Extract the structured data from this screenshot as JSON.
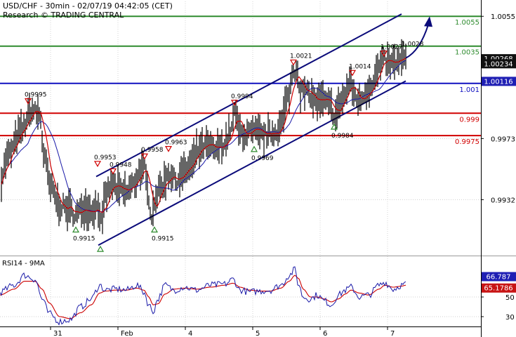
{
  "header": {
    "title": "USD/CHF - 30min - 02/07/19 04:42:05 (CET)",
    "research": "Research © TRADING CENTRAL"
  },
  "colors": {
    "price": "#000000",
    "ma_fast": "#cc0000",
    "ma_slow": "#1a1aa8",
    "channel": "#0b0b7a",
    "resistance": "#2e8b2e",
    "pivot": "#1010c0",
    "support": "#d10000",
    "marker_up": "#2e8b2e",
    "marker_down": "#d10000"
  },
  "chart_data": [
    {
      "type": "line",
      "title": "USD/CHF - 30min - 02/07/19 04:42:05 (CET)",
      "ylim": [
        0.9895,
        1.0065
      ],
      "y_ticks": [
        "1.0055",
        "0.9973",
        "0.9932"
      ],
      "x_ticks": [
        "31",
        "Feb",
        "4",
        "5",
        "6",
        "7"
      ],
      "x_tick_idx": [
        72,
        168,
        264,
        360,
        456,
        552
      ],
      "last_price": "1.00268",
      "price_tags": [
        {
          "label": "1.00268",
          "value": 1.00268,
          "style": "dark"
        },
        {
          "label": "1.00234",
          "value": 1.00234,
          "style": "dark"
        },
        {
          "label": "1.00116",
          "value": 1.00116,
          "style": "blue"
        }
      ],
      "levels": [
        {
          "value": 1.0055,
          "label": "1.0055",
          "kind": "resistance"
        },
        {
          "value": 1.0035,
          "label": "1.0035",
          "kind": "resistance"
        },
        {
          "value": 1.001,
          "label": "1.001",
          "kind": "pivot"
        },
        {
          "value": 0.999,
          "label": "0.999",
          "kind": "support"
        },
        {
          "value": 0.9975,
          "label": "0.9975",
          "kind": "support"
        }
      ],
      "channel": {
        "upper": [
          [
            137,
            0.99475
          ],
          [
            572,
            1.00565
          ]
        ],
        "lower": [
          [
            140,
            0.99015
          ],
          [
            578,
            1.00116
          ]
        ]
      },
      "projection": {
        "from": [
          578,
          1.0027
        ],
        "to": [
          612,
          1.0055
        ]
      },
      "series": [
        {
          "name": "Price",
          "anchors": [
            [
              0,
              0.9945
            ],
            [
              12,
              0.9962
            ],
            [
              30,
              0.9978
            ],
            [
              45,
              0.9992
            ],
            [
              57,
              0.9989
            ],
            [
              62,
              0.9963
            ],
            [
              72,
              0.994
            ],
            [
              85,
              0.9928
            ],
            [
              100,
              0.9925
            ],
            [
              108,
              0.9922
            ],
            [
              120,
              0.9927
            ],
            [
              130,
              0.9925
            ],
            [
              140,
              0.9928
            ],
            [
              145,
              0.9915
            ],
            [
              150,
              0.9935
            ],
            [
              160,
              0.9942
            ],
            [
              170,
              0.9938
            ],
            [
              180,
              0.9937
            ],
            [
              190,
              0.9942
            ],
            [
              200,
              0.9952
            ],
            [
              206,
              0.9952
            ],
            [
              210,
              0.9938
            ],
            [
              216,
              0.9922
            ],
            [
              222,
              0.9935
            ],
            [
              232,
              0.9942
            ],
            [
              240,
              0.995
            ],
            [
              250,
              0.9945
            ],
            [
              262,
              0.995
            ],
            [
              272,
              0.9955
            ],
            [
              282,
              0.9965
            ],
            [
              294,
              0.9968
            ],
            [
              306,
              0.9965
            ],
            [
              320,
              0.997
            ],
            [
              330,
              0.998
            ],
            [
              335,
              0.9992
            ],
            [
              340,
              0.9978
            ],
            [
              350,
              0.9976
            ],
            [
              362,
              0.9977
            ],
            [
              375,
              0.9975
            ],
            [
              390,
              0.9977
            ],
            [
              400,
              0.9982
            ],
            [
              410,
              1.0
            ],
            [
              418,
              1.0018
            ],
            [
              423,
              1.002
            ],
            [
              428,
              1.0005
            ],
            [
              440,
              1.0003
            ],
            [
              450,
              0.9998
            ],
            [
              460,
              0.9998
            ],
            [
              470,
              0.9995
            ],
            [
              478,
              0.9988
            ],
            [
              485,
              0.9998
            ],
            [
              492,
              1.0002
            ],
            [
              498,
              1.0012
            ],
            [
              504,
              1.0003
            ],
            [
              512,
              0.9998
            ],
            [
              520,
              1.0004
            ],
            [
              530,
              1.001
            ],
            [
              540,
              1.002
            ],
            [
              547,
              1.0025
            ],
            [
              555,
              1.0023
            ],
            [
              565,
              1.0024
            ],
            [
              578,
              1.0027
            ]
          ]
        }
      ],
      "markers": [
        {
          "kind": "down",
          "idx": 40,
          "value": 0.9995,
          "label": "0.9995"
        },
        {
          "kind": "up",
          "idx": 108,
          "value": 0.9915,
          "label": "0.9915"
        },
        {
          "kind": "down",
          "idx": 139,
          "value": 0.9953,
          "label": "0.9953"
        },
        {
          "kind": "up",
          "idx": 143,
          "value": 0.9902,
          "label": ""
        },
        {
          "kind": "down",
          "idx": 161,
          "value": 0.9948,
          "label": "0.9948"
        },
        {
          "kind": "down",
          "idx": 206,
          "value": 0.9958,
          "label": "0.9958"
        },
        {
          "kind": "up",
          "idx": 220,
          "value": 0.9915,
          "label": "0.9915"
        },
        {
          "kind": "down",
          "idx": 240,
          "value": 0.9963,
          "label": "0.9963"
        },
        {
          "kind": "down",
          "idx": 334,
          "value": 0.9994,
          "label": "0.9994"
        },
        {
          "kind": "up",
          "idx": 362,
          "value": 0.9969,
          "label": "0.9969"
        },
        {
          "kind": "down",
          "idx": 418,
          "value": 1.0021,
          "label": "1.0021"
        },
        {
          "kind": "up",
          "idx": 476,
          "value": 0.9984,
          "label": "0.9984"
        },
        {
          "kind": "down",
          "idx": 502,
          "value": 1.0014,
          "label": "1.0014"
        },
        {
          "kind": "down",
          "idx": 547,
          "value": 1.0027,
          "label": "1.0027"
        },
        {
          "kind": "none",
          "idx": 578,
          "value": 1.0028,
          "label": "1.0028"
        }
      ]
    },
    {
      "type": "line",
      "title": "RSI14 - 9MA",
      "ylim": [
        20,
        90
      ],
      "y_ticks": [
        "50",
        "30"
      ],
      "series": [
        {
          "name": "RSI14",
          "anchors": [
            [
              0,
              55
            ],
            [
              20,
              62
            ],
            [
              35,
              72
            ],
            [
              50,
              68
            ],
            [
              60,
              48
            ],
            [
              70,
              33
            ],
            [
              85,
              25
            ],
            [
              100,
              27
            ],
            [
              115,
              40
            ],
            [
              130,
              48
            ],
            [
              142,
              62
            ],
            [
              150,
              57
            ],
            [
              165,
              58
            ],
            [
              180,
              57
            ],
            [
              195,
              62
            ],
            [
              205,
              55
            ],
            [
              212,
              42
            ],
            [
              218,
              35
            ],
            [
              225,
              48
            ],
            [
              235,
              62
            ],
            [
              248,
              57
            ],
            [
              262,
              60
            ],
            [
              280,
              57
            ],
            [
              300,
              62
            ],
            [
              320,
              63
            ],
            [
              332,
              68
            ],
            [
              342,
              57
            ],
            [
              355,
              55
            ],
            [
              370,
              56
            ],
            [
              385,
              57
            ],
            [
              400,
              62
            ],
            [
              412,
              72
            ],
            [
              420,
              78
            ],
            [
              425,
              63
            ],
            [
              432,
              50
            ],
            [
              442,
              48
            ],
            [
              452,
              52
            ],
            [
              462,
              46
            ],
            [
              472,
              42
            ],
            [
              482,
              52
            ],
            [
              492,
              57
            ],
            [
              500,
              60
            ],
            [
              512,
              50
            ],
            [
              525,
              52
            ],
            [
              540,
              62
            ],
            [
              548,
              65
            ],
            [
              560,
              58
            ],
            [
              572,
              62
            ],
            [
              578,
              63
            ]
          ]
        },
        {
          "name": "9MA",
          "anchors": [
            [
              0,
              52
            ],
            [
              20,
              58
            ],
            [
              35,
              66
            ],
            [
              50,
              66
            ],
            [
              60,
              58
            ],
            [
              70,
              44
            ],
            [
              85,
              30
            ],
            [
              100,
              28
            ],
            [
              115,
              34
            ],
            [
              130,
              42
            ],
            [
              142,
              54
            ],
            [
              150,
              56
            ],
            [
              165,
              57
            ],
            [
              180,
              57
            ],
            [
              195,
              59
            ],
            [
              205,
              57
            ],
            [
              212,
              50
            ],
            [
              218,
              42
            ],
            [
              225,
              43
            ],
            [
              235,
              53
            ],
            [
              248,
              58
            ],
            [
              262,
              59
            ],
            [
              280,
              58
            ],
            [
              300,
              60
            ],
            [
              320,
              62
            ],
            [
              332,
              64
            ],
            [
              342,
              60
            ],
            [
              355,
              57
            ],
            [
              370,
              56
            ],
            [
              385,
              56
            ],
            [
              400,
              59
            ],
            [
              412,
              66
            ],
            [
              420,
              72
            ],
            [
              425,
              69
            ],
            [
              432,
              58
            ],
            [
              442,
              50
            ],
            [
              452,
              50
            ],
            [
              462,
              48
            ],
            [
              472,
              45
            ],
            [
              482,
              48
            ],
            [
              492,
              53
            ],
            [
              500,
              57
            ],
            [
              512,
              54
            ],
            [
              525,
              52
            ],
            [
              540,
              58
            ],
            [
              548,
              62
            ],
            [
              560,
              60
            ],
            [
              572,
              61
            ],
            [
              578,
              62
            ]
          ]
        }
      ],
      "value_tags": [
        {
          "label": "66.787",
          "value": 66.787,
          "style": "blue"
        },
        {
          "label": "65.1786",
          "value": 65.1786,
          "style": "red"
        }
      ]
    }
  ]
}
